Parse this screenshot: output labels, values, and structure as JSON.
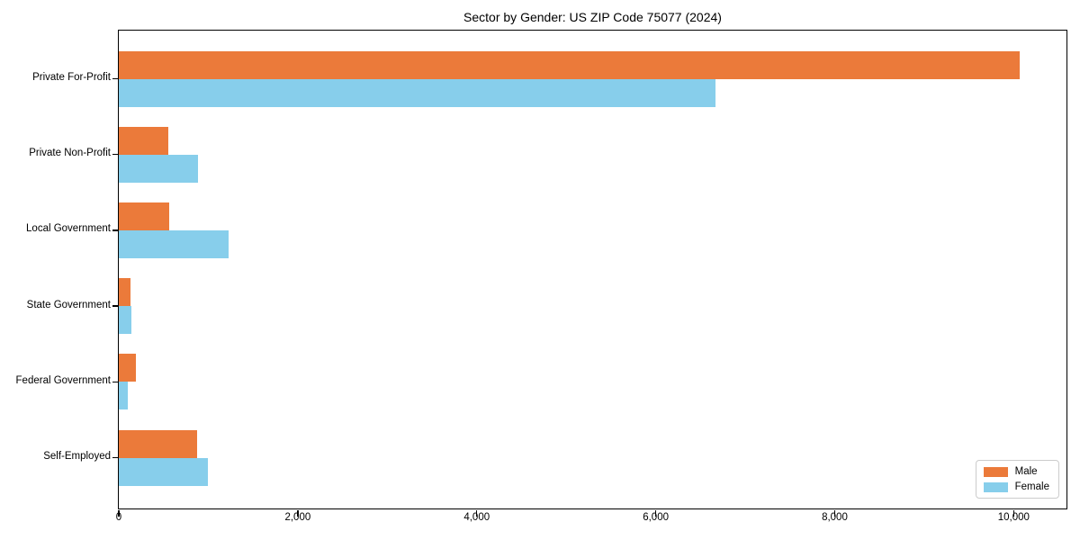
{
  "chart_data": {
    "type": "bar",
    "orientation": "horizontal",
    "title": "Sector by Gender: US ZIP Code 75077 (2024)",
    "xlabel": "",
    "ylabel": "",
    "grid": false,
    "legend_position": "lower right",
    "categories": [
      "Private For-Profit",
      "Private Non-Profit",
      "Local Government",
      "State Government",
      "Federal Government",
      "Self-Employed"
    ],
    "series": [
      {
        "name": "Male",
        "color": "#eb7a3a",
        "values": [
          10070,
          550,
          560,
          130,
          190,
          870
        ]
      },
      {
        "name": "Female",
        "color": "#87ceeb",
        "values": [
          6670,
          880,
          1230,
          140,
          100,
          1000
        ]
      }
    ],
    "xlim": [
      0,
      10580
    ],
    "x_tick_values": [
      0,
      2000,
      4000,
      6000,
      8000,
      10000
    ],
    "x_tick_labels": [
      "0",
      "2,000",
      "4,000",
      "6,000",
      "8,000",
      "10,000"
    ]
  }
}
